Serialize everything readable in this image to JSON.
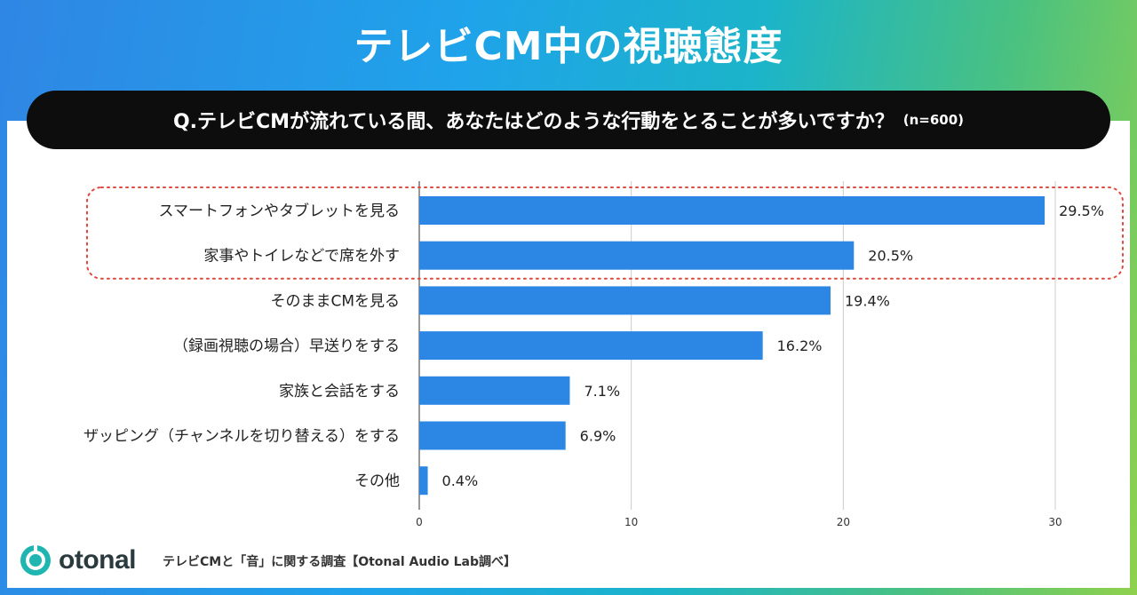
{
  "title": "テレビCM中の視聴態度",
  "question": {
    "text": "Q.テレビCMが流れている間、あなたはどのような行動をとることが多いですか？",
    "n_label": "(n=600)"
  },
  "chart_data": {
    "type": "bar",
    "orientation": "horizontal",
    "categories": [
      "スマートフォンやタブレットを見る",
      "家事やトイレなどで席を外す",
      "そのままCMを見る",
      "（録画視聴の場合）早送りをする",
      "家族と会話をする",
      "ザッピング（チャンネルを切り替える）をする",
      "その他"
    ],
    "values": [
      29.5,
      20.5,
      19.4,
      16.2,
      7.1,
      6.9,
      0.4
    ],
    "value_labels": [
      "29.5%",
      "20.5%",
      "19.4%",
      "16.2%",
      "7.1%",
      "6.9%",
      "0.4%"
    ],
    "xlim": [
      0,
      30
    ],
    "xticks": [
      0,
      10,
      20,
      30
    ],
    "grid": true,
    "highlight_rows": [
      0,
      1
    ],
    "colors": {
      "bar": "#2b87e3",
      "highlight": "#e0473f",
      "grid": "#cccccc"
    }
  },
  "footer": {
    "logo_text": "otonal",
    "source": "テレビCMと「音」に関する調査【Otonal Audio Lab調べ】"
  },
  "colors": {
    "logo_mark": "#1fb5b0",
    "question_bg": "#0d0d0d"
  }
}
